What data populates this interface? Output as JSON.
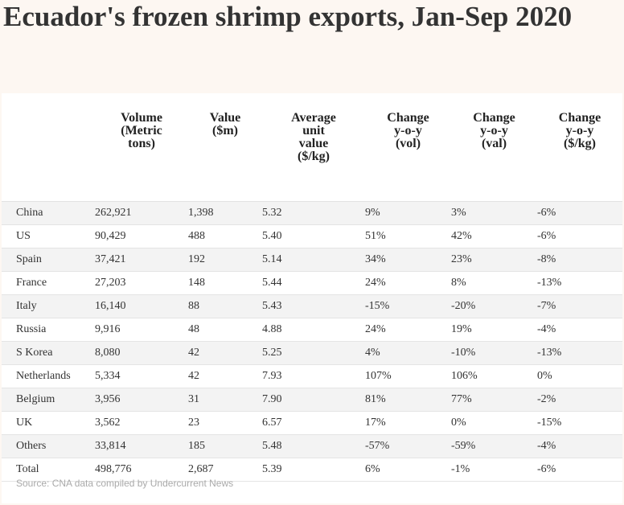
{
  "title": "Ecuador's frozen shrimp exports, Jan-Sep 2020",
  "table": {
    "headers": [
      "",
      "Volume\n(Metric\ntons)",
      "Value\n($m)",
      "Average\nunit\nvalue\n($/kg)",
      "Change\ny-o-y\n(vol)",
      "Change\ny-o-y\n(val)",
      "Change\ny-o-y\n($/kg)"
    ],
    "rows": [
      [
        "China",
        "262,921",
        "1,398",
        "5.32",
        "9%",
        "3%",
        "-6%"
      ],
      [
        "US",
        "90,429",
        "488",
        "5.40",
        "51%",
        "42%",
        "-6%"
      ],
      [
        "Spain",
        "37,421",
        "192",
        "5.14",
        "34%",
        "23%",
        "-8%"
      ],
      [
        "France",
        "27,203",
        "148",
        "5.44",
        "24%",
        "8%",
        "-13%"
      ],
      [
        "Italy",
        "16,140",
        "88",
        "5.43",
        "-15%",
        "-20%",
        "-7%"
      ],
      [
        "Russia",
        "9,916",
        "48",
        "4.88",
        "24%",
        "19%",
        "-4%"
      ],
      [
        "S Korea",
        "8,080",
        "42",
        "5.25",
        "4%",
        "-10%",
        "-13%"
      ],
      [
        "Netherlands",
        "5,334",
        "42",
        "7.93",
        "107%",
        "106%",
        "0%"
      ],
      [
        "Belgium",
        "3,956",
        "31",
        "7.90",
        "81%",
        "77%",
        "-2%"
      ],
      [
        "UK",
        "3,562",
        "23",
        "6.57",
        "17%",
        "0%",
        "-15%"
      ],
      [
        "Others",
        "33,814",
        "185",
        "5.48",
        "-57%",
        "-59%",
        "-4%"
      ],
      [
        "Total",
        "498,776",
        "2,687",
        "5.39",
        "6%",
        "-1%",
        "-6%"
      ]
    ]
  },
  "source": "Source: CNA data compiled by Undercurrent News"
}
